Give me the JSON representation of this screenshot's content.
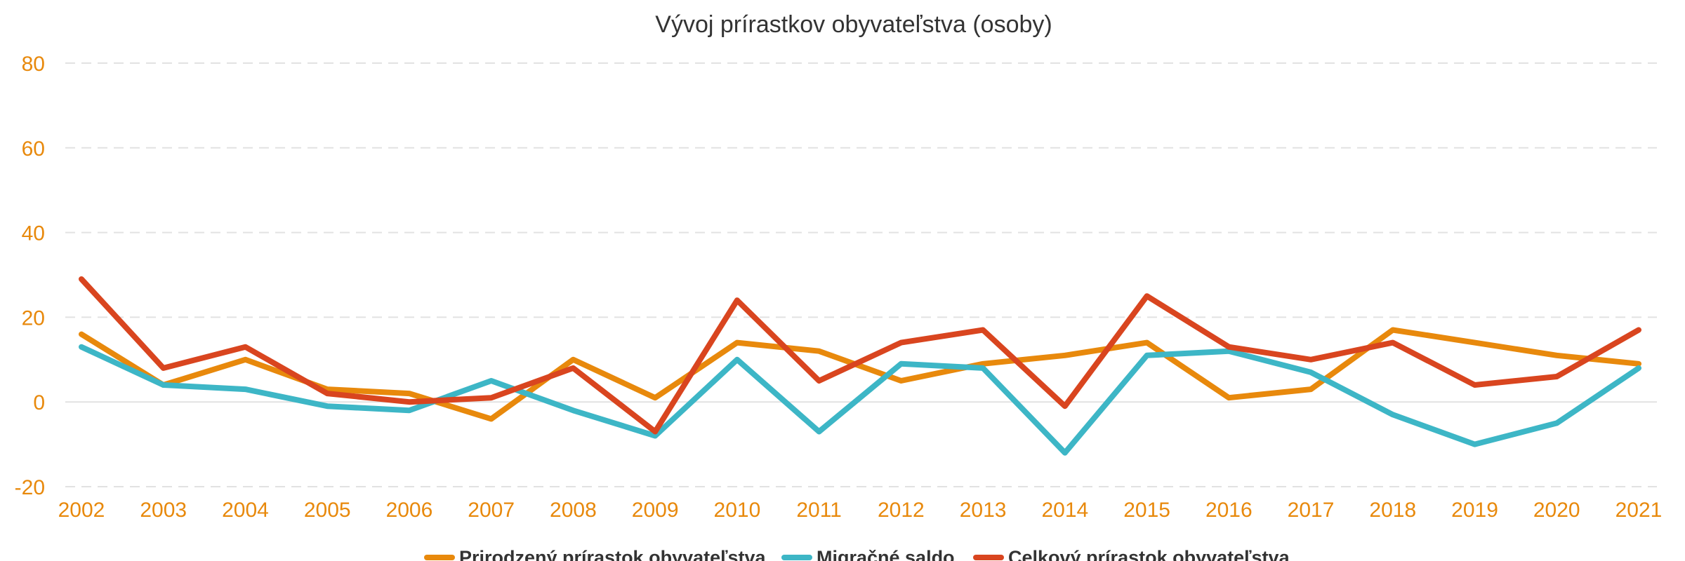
{
  "chart_data": {
    "type": "line",
    "title": "Vývoj prírastkov obyvateľstva (osoby)",
    "xlabel": "",
    "ylabel": "",
    "ylim": [
      -20,
      80
    ],
    "yticks": [
      -20,
      0,
      20,
      40,
      60,
      80
    ],
    "grid": true,
    "legend_position": "bottom",
    "categories": [
      "2002",
      "2003",
      "2004",
      "2005",
      "2006",
      "2007",
      "2008",
      "2009",
      "2010",
      "2011",
      "2012",
      "2013",
      "2014",
      "2015",
      "2016",
      "2017",
      "2018",
      "2019",
      "2020",
      "2021"
    ],
    "series": [
      {
        "name": "Prirodzený prírastok obyvateľstva",
        "color": "#E8890C",
        "values": [
          16,
          4,
          10,
          3,
          2,
          -4,
          10,
          1,
          14,
          12,
          5,
          9,
          11,
          14,
          1,
          3,
          17,
          14,
          11,
          9
        ]
      },
      {
        "name": "Migračné saldo",
        "color": "#3DB6C6",
        "values": [
          13,
          4,
          3,
          -1,
          -2,
          5,
          -2,
          -8,
          10,
          -7,
          9,
          8,
          -12,
          11,
          12,
          7,
          -3,
          -10,
          -5,
          8
        ]
      },
      {
        "name": "Celkový prírastok obyvateľstva",
        "color": "#D9451F",
        "values": [
          29,
          8,
          13,
          2,
          0,
          1,
          8,
          -7,
          24,
          5,
          14,
          17,
          -1,
          25,
          13,
          10,
          14,
          4,
          6,
          17
        ]
      }
    ],
    "axis_label_color": "#E8890C",
    "grid_color": "#E2E2E2"
  }
}
